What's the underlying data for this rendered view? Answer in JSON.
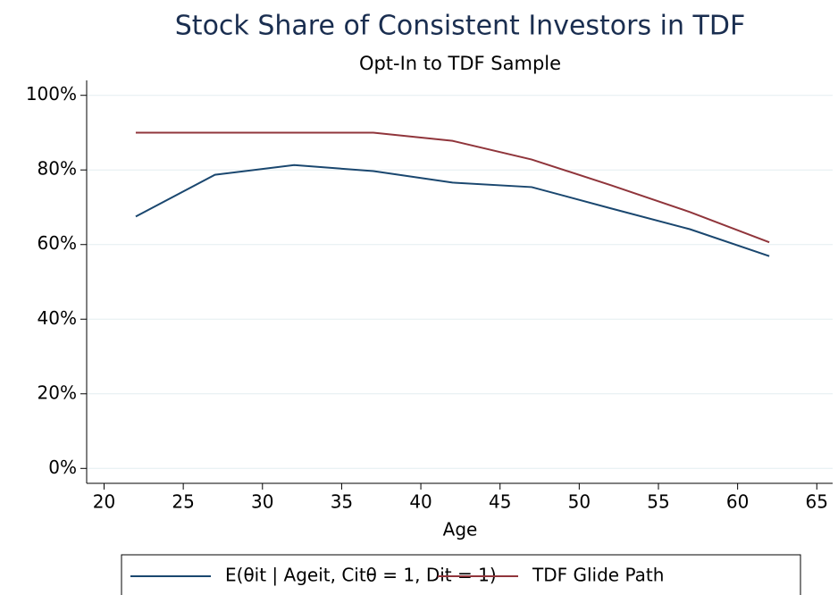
{
  "chart_data": {
    "type": "line",
    "title": "Stock Share of Consistent Investors in TDF",
    "subtitle": "Opt-In to TDF Sample",
    "x_label": "Age",
    "x": [
      22,
      27,
      32,
      37,
      42,
      47,
      52,
      57,
      62
    ],
    "series": [
      {
        "name": "E(θit | Ageit, Citθ = 1, Dit = 1)",
        "color": "#1a476f",
        "values": [
          67.5,
          78.7,
          81.3,
          79.7,
          76.6,
          75.4,
          69.7,
          64.1,
          56.9
        ]
      },
      {
        "name": "TDF Glide Path",
        "color": "#90353b",
        "values": [
          90,
          90,
          90,
          90,
          87.8,
          82.8,
          75.9,
          68.7,
          60.6
        ]
      }
    ],
    "xlim": [
      18.9,
      66
    ],
    "xticks": [
      20,
      25,
      30,
      35,
      40,
      45,
      50,
      55,
      60,
      65
    ],
    "ylim": [
      -4,
      104
    ],
    "yticks": [
      {
        "value": 0,
        "label": "0%"
      },
      {
        "value": 20,
        "label": "20%"
      },
      {
        "value": 40,
        "label": "40%"
      },
      {
        "value": 60,
        "label": "60%"
      },
      {
        "value": 80,
        "label": "80%"
      },
      {
        "value": 100,
        "label": "100%"
      }
    ],
    "grid": true
  }
}
